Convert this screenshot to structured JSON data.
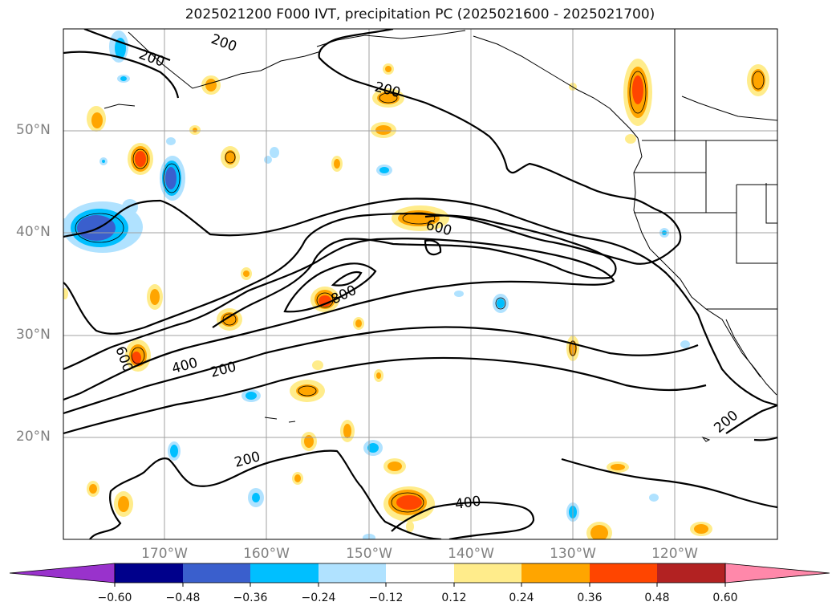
{
  "title": "2025021200 F000 IVT, precipitation PC (2025021600 - 2025021700)",
  "axes": {
    "lat_ticks": [
      "50°N",
      "40°N",
      "30°N",
      "20°N"
    ],
    "lon_ticks": [
      "170°W",
      "160°W",
      "150°W",
      "140°W",
      "130°W",
      "120°W"
    ]
  },
  "contours": {
    "ivt_labels": [
      "200",
      "200",
      "200",
      "600",
      "800",
      "600",
      "400",
      "200",
      "200",
      "400",
      "200"
    ]
  },
  "colorbar": {
    "ticks": [
      "−0.60",
      "−0.48",
      "−0.36",
      "−0.24",
      "−0.12",
      "0.12",
      "0.24",
      "0.36",
      "0.48",
      "0.60"
    ],
    "colors": [
      "#9932cc",
      "#00008b",
      "#3a5fcd",
      "#00bfff",
      "#b0e2ff",
      "#ffffff",
      "#ffec8b",
      "#ffa500",
      "#ff4500",
      "#b22222",
      "#ff88aa"
    ]
  },
  "colors": {
    "neg_strong": "#3a5fcd",
    "neg_mid": "#00bfff",
    "neg_weak": "#b0e2ff",
    "pos_weak": "#ffec8b",
    "pos_mid": "#ffa500",
    "pos_strong": "#ff4500",
    "deep_purple": "#9932cc",
    "grid": "#a0a0a0",
    "contour": "#000000"
  }
}
